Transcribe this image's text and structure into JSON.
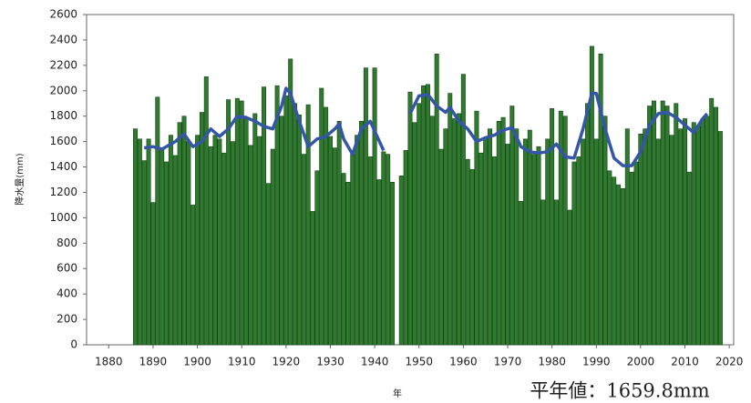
{
  "chart_data": {
    "type": "bar-line",
    "y_label": "降水量(mm)",
    "x_label": "年",
    "annotation": "平年値：1659.8mm",
    "xlim": [
      1875,
      2021
    ],
    "xticks": [
      1880,
      1890,
      1900,
      1910,
      1920,
      1930,
      1940,
      1950,
      1960,
      1970,
      1980,
      1990,
      2000,
      2010,
      2020
    ],
    "ylim": [
      0,
      2600
    ],
    "yticks": [
      0,
      200,
      400,
      600,
      800,
      1000,
      1200,
      1400,
      1600,
      1800,
      2000,
      2200,
      2400,
      2600
    ],
    "bars": {
      "color": "#2f7a2f",
      "edge": "#174417",
      "x": [
        1886,
        1887,
        1888,
        1889,
        1890,
        1891,
        1892,
        1893,
        1894,
        1895,
        1896,
        1897,
        1898,
        1899,
        1900,
        1901,
        1902,
        1903,
        1904,
        1905,
        1906,
        1907,
        1908,
        1909,
        1910,
        1911,
        1912,
        1913,
        1914,
        1915,
        1916,
        1917,
        1918,
        1919,
        1920,
        1921,
        1922,
        1923,
        1924,
        1925,
        1926,
        1927,
        1928,
        1929,
        1930,
        1931,
        1932,
        1933,
        1934,
        1935,
        1936,
        1937,
        1938,
        1939,
        1940,
        1941,
        1942,
        1943,
        1944,
        1945,
        1946,
        1947,
        1948,
        1949,
        1950,
        1951,
        1952,
        1953,
        1954,
        1955,
        1956,
        1957,
        1958,
        1959,
        1960,
        1961,
        1962,
        1963,
        1964,
        1965,
        1966,
        1967,
        1968,
        1969,
        1970,
        1971,
        1972,
        1973,
        1974,
        1975,
        1976,
        1977,
        1978,
        1979,
        1980,
        1981,
        1982,
        1983,
        1984,
        1985,
        1986,
        1987,
        1988,
        1989,
        1990,
        1991,
        1992,
        1993,
        1994,
        1995,
        1996,
        1997,
        1998,
        1999,
        2000,
        2001,
        2002,
        2003,
        2004,
        2005,
        2006,
        2007,
        2008,
        2009,
        2010,
        2011,
        2012,
        2013,
        2014,
        2015,
        2016,
        2017,
        2018
      ],
      "values": [
        1700,
        1620,
        1450,
        1620,
        1120,
        1950,
        1540,
        1440,
        1650,
        1490,
        1750,
        1800,
        1600,
        1100,
        1650,
        1830,
        2110,
        1560,
        1650,
        1620,
        1510,
        1930,
        1600,
        1940,
        1920,
        1780,
        1570,
        1820,
        1640,
        2030,
        1270,
        1540,
        2040,
        1800,
        1960,
        2250,
        1900,
        1810,
        1500,
        1890,
        1050,
        1370,
        2020,
        1870,
        1640,
        1550,
        1760,
        1350,
        1280,
        1500,
        1650,
        1760,
        2180,
        1480,
        2180,
        1300,
        1520,
        1500,
        1280,
        null,
        1330,
        1530,
        1990,
        1750,
        1900,
        2040,
        2050,
        1800,
        2290,
        1540,
        1700,
        1980,
        1780,
        1820,
        2130,
        1460,
        1380,
        1840,
        1510,
        1630,
        1700,
        1480,
        1760,
        1790,
        1580,
        1880,
        1700,
        1130,
        1620,
        1690,
        1500,
        1560,
        1140,
        1620,
        1860,
        1140,
        1840,
        1800,
        1060,
        1440,
        1480,
        1620,
        1900,
        2350,
        1620,
        2290,
        1800,
        1370,
        1320,
        1260,
        1230,
        1700,
        1360,
        1440,
        1660,
        1700,
        1880,
        1920,
        1620,
        1920,
        1880,
        1650,
        1900,
        1700,
        1780,
        1360,
        1750,
        1720,
        1780,
        1800,
        1940,
        1870,
        1680
      ]
    },
    "line": {
      "color": "#3556a8",
      "x": [
        1888,
        1890,
        1892,
        1895,
        1897,
        1899,
        1901,
        1903,
        1905,
        1907,
        1909,
        1911,
        1913,
        1915,
        1917,
        1919,
        1920,
        1921,
        1923,
        1925,
        1927,
        1929,
        1931,
        1932,
        1933,
        1935,
        1937,
        1939,
        1942,
        1945,
        1948,
        1950,
        1952,
        1954,
        1956,
        1957,
        1959,
        1961,
        1963,
        1965,
        1967,
        1969,
        1971,
        1973,
        1975,
        1977,
        1979,
        1981,
        1983,
        1985,
        1987,
        1989,
        1990,
        1992,
        1994,
        1996,
        1998,
        2000,
        2002,
        2004,
        2006,
        2008,
        2010,
        2012,
        2014,
        2015
      ],
      "values": [
        1550,
        1560,
        1540,
        1600,
        1660,
        1560,
        1600,
        1700,
        1640,
        1700,
        1800,
        1790,
        1760,
        1720,
        1700,
        1880,
        2020,
        1980,
        1760,
        1560,
        1620,
        1640,
        1700,
        1740,
        1620,
        1500,
        1700,
        1760,
        1530,
        null,
        1820,
        1960,
        1970,
        1880,
        1830,
        1870,
        1760,
        1700,
        1600,
        1630,
        1650,
        1690,
        1710,
        1560,
        1520,
        1510,
        1520,
        1580,
        1480,
        1470,
        1700,
        1980,
        1980,
        1700,
        1470,
        1410,
        1410,
        1520,
        1730,
        1820,
        1830,
        1790,
        1730,
        1670,
        1780,
        1820
      ]
    }
  }
}
